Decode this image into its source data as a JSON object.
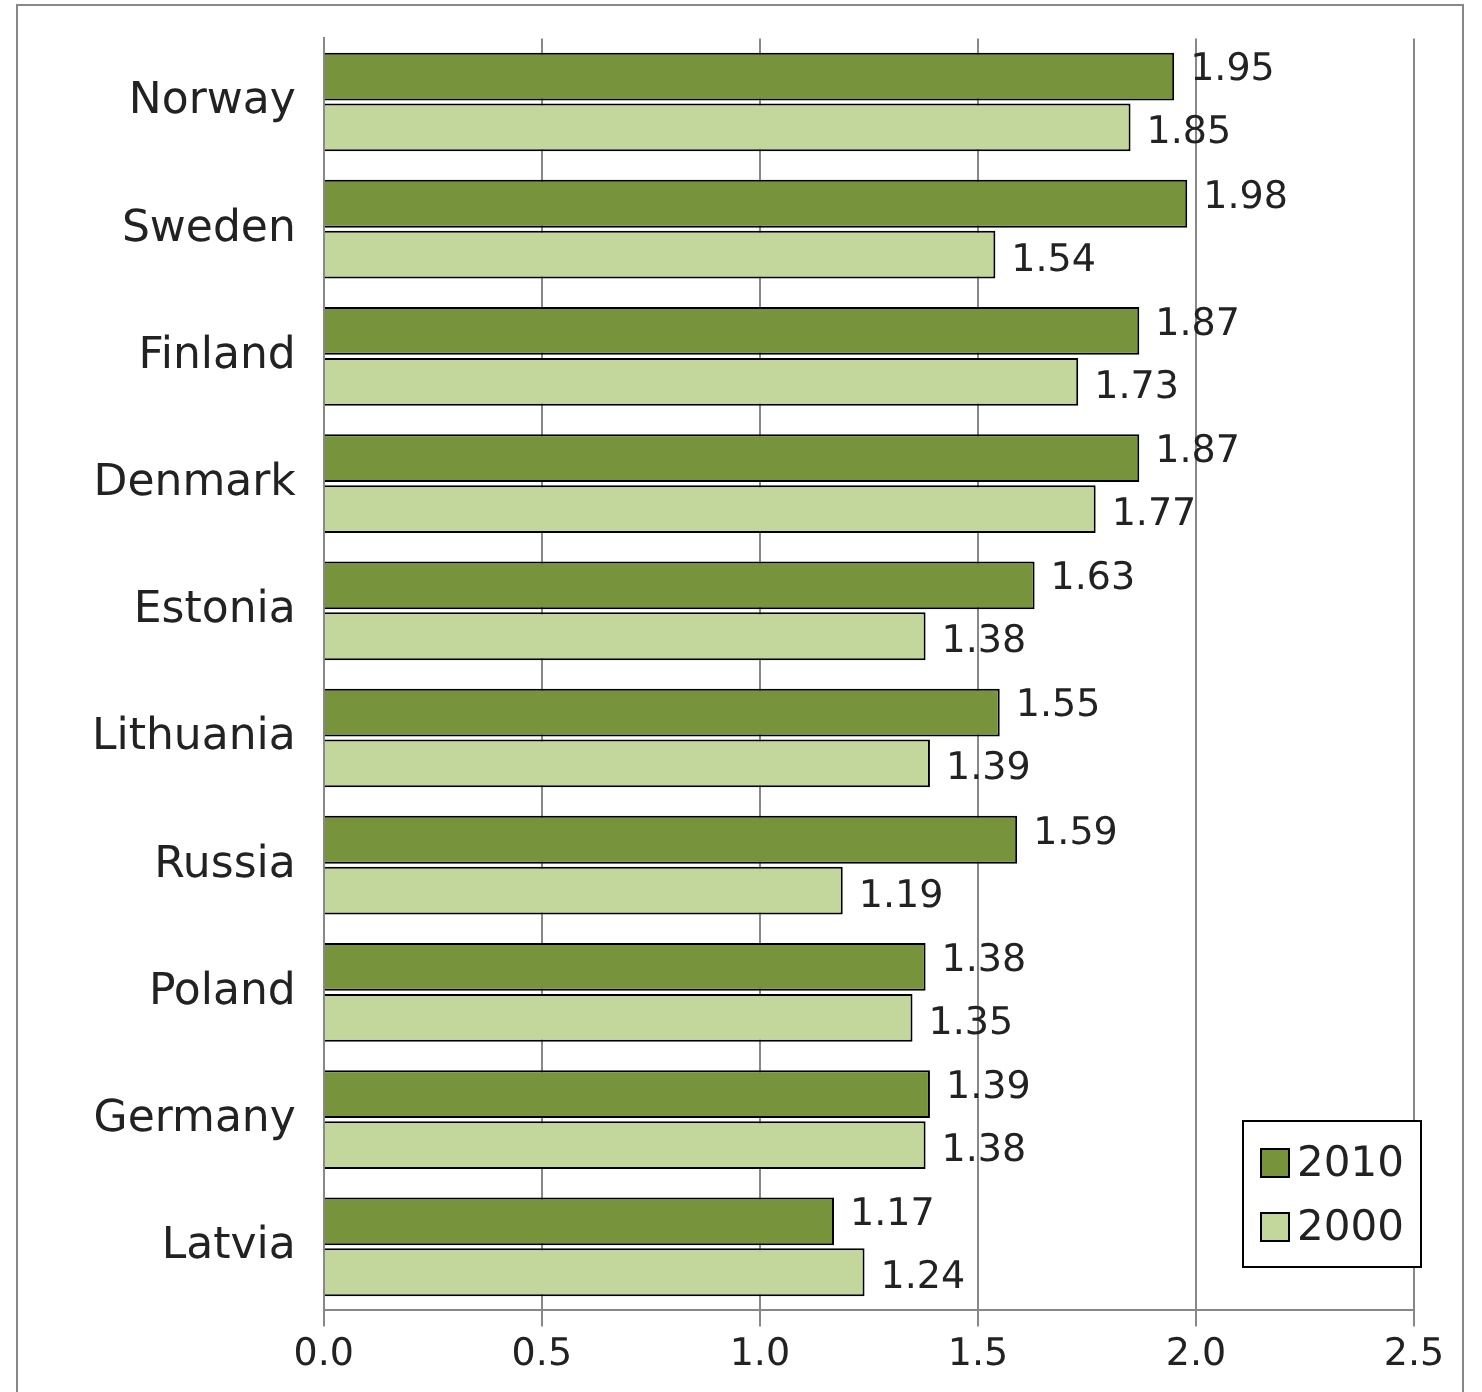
{
  "chart_data": {
    "type": "bar",
    "orientation": "horizontal",
    "categories": [
      "Norway",
      "Sweden",
      "Finland",
      "Denmark",
      "Estonia",
      "Lithuania",
      "Russia",
      "Poland",
      "Germany",
      "Latvia"
    ],
    "series": [
      {
        "name": "2010",
        "color": "#77933c",
        "values": [
          1.95,
          1.98,
          1.87,
          1.87,
          1.63,
          1.55,
          1.59,
          1.38,
          1.39,
          1.17
        ]
      },
      {
        "name": "2000",
        "color": "#c3d69b",
        "values": [
          1.85,
          1.54,
          1.73,
          1.77,
          1.38,
          1.39,
          1.19,
          1.35,
          1.38,
          1.24
        ]
      }
    ],
    "xlim": [
      0,
      2.5
    ],
    "xticks": [
      {
        "value": 0,
        "label": "0.0"
      },
      {
        "value": 0.5,
        "label": "0.5"
      },
      {
        "value": 1,
        "label": "1.0"
      },
      {
        "value": 1.5,
        "label": "1.5"
      },
      {
        "value": 2,
        "label": "2.0"
      },
      {
        "value": 2.5,
        "label": "2.5"
      }
    ],
    "grid": "x",
    "legend": "bottom right",
    "data_labels": true
  }
}
